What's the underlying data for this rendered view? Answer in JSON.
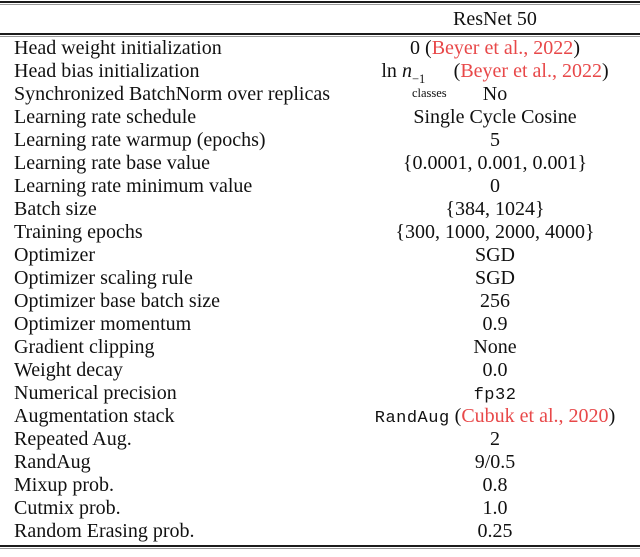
{
  "colors": {
    "cite_red": "#e84849",
    "text": "#111111",
    "rule_dark": "#1c1c1c",
    "rule_gray": "#9a9a9a"
  },
  "table": {
    "header": "ResNet 50",
    "rows": [
      {
        "label": "Head weight initialization",
        "value": [
          {
            "t": "text",
            "v": "0 ("
          },
          {
            "t": "cite",
            "v": "Beyer et al., 2022"
          },
          {
            "t": "text",
            "v": ")"
          }
        ]
      },
      {
        "label": "Head bias initialization",
        "value": [
          {
            "t": "text",
            "v": "ln "
          },
          {
            "t": "mathvar",
            "v": "n"
          },
          {
            "t": "supsub",
            "sup": "−1",
            "sub": "classes"
          },
          {
            "t": "text",
            "v": " ("
          },
          {
            "t": "cite",
            "v": "Beyer et al., 2022"
          },
          {
            "t": "text",
            "v": ")"
          }
        ]
      },
      {
        "label": "Synchronized BatchNorm over replicas",
        "value": [
          {
            "t": "text",
            "v": "No"
          }
        ]
      },
      {
        "label": "Learning rate schedule",
        "value": [
          {
            "t": "text",
            "v": "Single Cycle Cosine"
          }
        ]
      },
      {
        "label": "Learning rate warmup (epochs)",
        "value": [
          {
            "t": "text",
            "v": "5"
          }
        ]
      },
      {
        "label": "Learning rate base value",
        "value": [
          {
            "t": "text",
            "v": "{0.0001, 0.001, 0.001}"
          }
        ]
      },
      {
        "label": "Learning rate minimum value",
        "value": [
          {
            "t": "text",
            "v": "0"
          }
        ]
      },
      {
        "label": "Batch size",
        "value": [
          {
            "t": "text",
            "v": "{384, 1024}"
          }
        ]
      },
      {
        "label": "Training epochs",
        "value": [
          {
            "t": "text",
            "v": "{300, 1000, 2000, 4000}"
          }
        ]
      },
      {
        "label": "Optimizer",
        "value": [
          {
            "t": "text",
            "v": "SGD"
          }
        ]
      },
      {
        "label": "Optimizer scaling rule",
        "value": [
          {
            "t": "text",
            "v": "SGD"
          }
        ]
      },
      {
        "label": "Optimizer base batch size",
        "value": [
          {
            "t": "text",
            "v": "256"
          }
        ]
      },
      {
        "label": "Optimizer momentum",
        "value": [
          {
            "t": "text",
            "v": "0.9"
          }
        ]
      },
      {
        "label": "Gradient clipping",
        "value": [
          {
            "t": "text",
            "v": "None"
          }
        ]
      },
      {
        "label": "Weight decay",
        "value": [
          {
            "t": "text",
            "v": "0.0"
          }
        ]
      },
      {
        "label": "Numerical precision",
        "value": [
          {
            "t": "mono",
            "v": "fp32"
          }
        ]
      },
      {
        "label": "Augmentation stack",
        "value": [
          {
            "t": "mono",
            "v": "RandAug"
          },
          {
            "t": "text",
            "v": " ("
          },
          {
            "t": "cite",
            "v": "Cubuk et al., 2020"
          },
          {
            "t": "text",
            "v": ")"
          }
        ]
      },
      {
        "label": "Repeated Aug.",
        "value": [
          {
            "t": "text",
            "v": "2"
          }
        ]
      },
      {
        "label": "RandAug",
        "value": [
          {
            "t": "text",
            "v": "9/0.5"
          }
        ]
      },
      {
        "label": "Mixup prob.",
        "value": [
          {
            "t": "text",
            "v": "0.8"
          }
        ]
      },
      {
        "label": "Cutmix prob.",
        "value": [
          {
            "t": "text",
            "v": "1.0"
          }
        ]
      },
      {
        "label": "Random Erasing prob.",
        "value": [
          {
            "t": "text",
            "v": "0.25"
          }
        ]
      }
    ]
  }
}
